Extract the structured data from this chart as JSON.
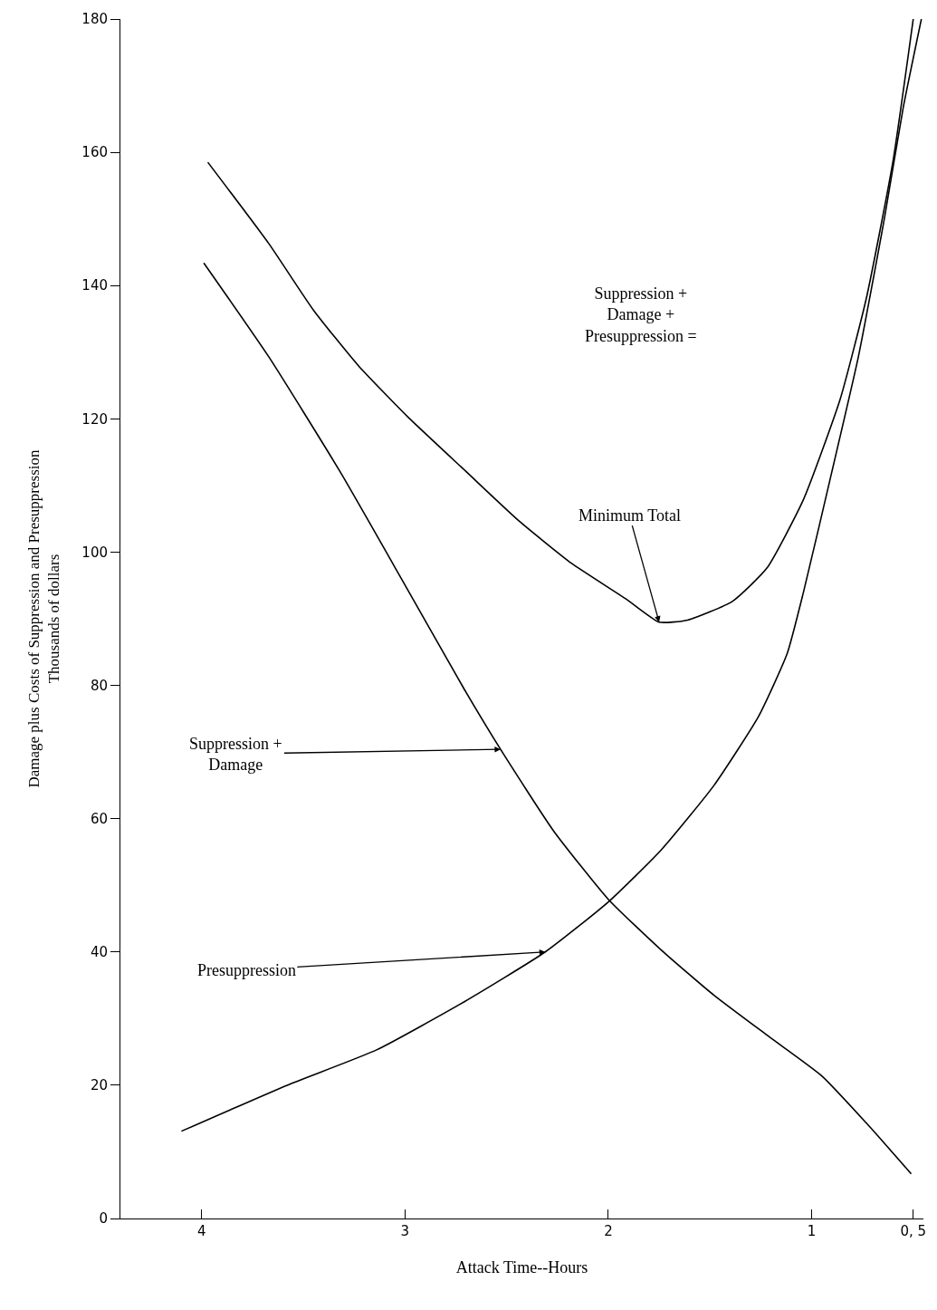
{
  "chart_data": {
    "type": "line",
    "xlabel": "Attack Time--Hours",
    "ylabel": "Damage plus Costs of Suppression and Presuppression\nThousands of dollars",
    "xlim": [
      4.4,
      0.45
    ],
    "xticks": [
      4,
      3,
      2,
      1,
      {
        "value": 0.5,
        "label": "0, 5"
      }
    ],
    "ylim": [
      0,
      180
    ],
    "yticks": [
      0,
      20,
      40,
      60,
      80,
      100,
      120,
      140,
      160,
      180
    ],
    "marker": "none",
    "line_style": "solid",
    "series": [
      {
        "color": "#000000",
        "x": [
          3.97,
          3.67,
          3.45,
          3.23,
          2.99,
          2.7,
          2.44,
          2.18,
          1.91,
          1.75,
          1.61,
          1.39,
          1.22,
          1.04,
          0.86,
          0.73,
          0.6,
          0.5
        ],
        "values": [
          158.5,
          146.3,
          136.3,
          128.0,
          120.4,
          112.1,
          104.7,
          98.3,
          92.9,
          89.5,
          89.8,
          92.6,
          97.6,
          107.9,
          122.9,
          138.2,
          158.6,
          180
        ]
      },
      {
        "color": "#000000",
        "x": [
          3.99,
          3.67,
          3.32,
          3.01,
          2.71,
          2.53,
          2.27,
          2.0,
          1.74,
          1.48,
          1.21,
          0.95,
          0.73,
          0.51
        ],
        "values": [
          143.4,
          129.3,
          112.1,
          95.6,
          79.5,
          70.4,
          58.2,
          47.9,
          40.3,
          33.5,
          27.3,
          21.4,
          14.3,
          6.7
        ]
      },
      {
        "color": "#000000",
        "x": [
          4.1,
          3.58,
          3.14,
          2.71,
          2.31,
          2.0,
          1.74,
          1.48,
          1.26,
          1.12,
          1.04,
          0.9,
          0.77,
          0.64,
          0.55,
          0.46
        ],
        "values": [
          13.1,
          20,
          25.3,
          32.5,
          40,
          47.5,
          55.3,
          65.0,
          75.4,
          84.8,
          94.0,
          112.1,
          129.3,
          150.4,
          166.6,
          180
        ]
      }
    ],
    "annotations": [
      "Suppression +\nDamage +\nPresuppression =",
      {
        "text": "Minimum Total",
        "x": 1.75,
        "y": 89.5
      },
      {
        "text": "Suppression +\nDamage",
        "x": 2.53,
        "y": 70.4
      },
      {
        "text": "Presuppression",
        "x": 2.31,
        "y": 40
      }
    ]
  }
}
